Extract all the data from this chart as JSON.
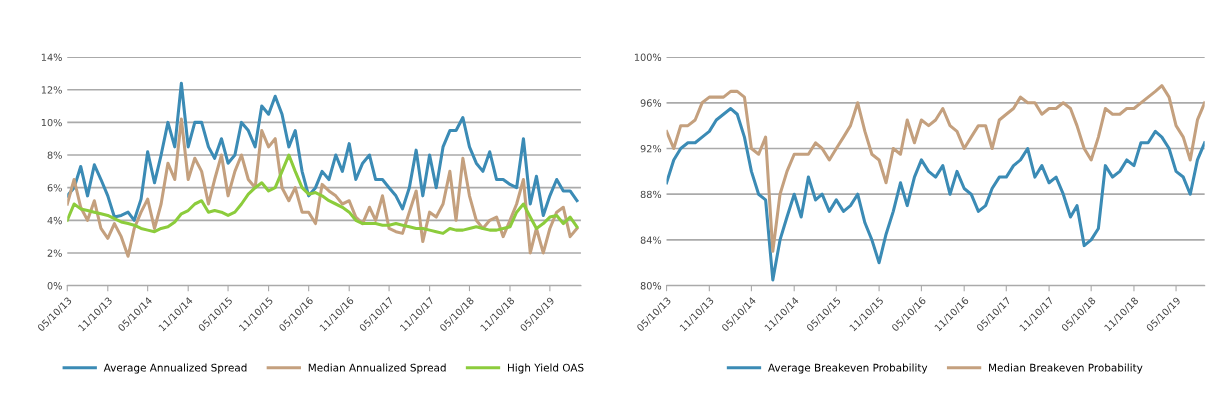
{
  "chart_data": [
    {
      "type": "line",
      "x": [
        "2013-05-10",
        "2013-06-10",
        "2013-07-10",
        "2013-08-10",
        "2013-09-10",
        "2013-10-10",
        "2013-11-10",
        "2013-12-10",
        "2014-01-10",
        "2014-02-10",
        "2014-03-10",
        "2014-04-10",
        "2014-05-10",
        "2014-06-10",
        "2014-07-10",
        "2014-08-10",
        "2014-09-10",
        "2014-10-10",
        "2014-11-10",
        "2014-12-10",
        "2015-01-10",
        "2015-02-10",
        "2015-03-10",
        "2015-04-10",
        "2015-05-10",
        "2015-06-10",
        "2015-07-10",
        "2015-08-10",
        "2015-09-10",
        "2015-10-10",
        "2015-11-10",
        "2015-12-10",
        "2016-01-10",
        "2016-02-10",
        "2016-03-10",
        "2016-04-10",
        "2016-05-10",
        "2016-06-10",
        "2016-07-10",
        "2016-08-10",
        "2016-09-10",
        "2016-10-10",
        "2016-11-10",
        "2016-12-10",
        "2017-01-10",
        "2017-02-10",
        "2017-03-10",
        "2017-04-10",
        "2017-05-10",
        "2017-06-10",
        "2017-07-10",
        "2017-08-10",
        "2017-09-10",
        "2017-10-10",
        "2017-11-10",
        "2017-12-10",
        "2018-01-10",
        "2018-02-10",
        "2018-03-10",
        "2018-04-10",
        "2018-05-10",
        "2018-06-10",
        "2018-07-10",
        "2018-08-10",
        "2018-09-10",
        "2018-10-10",
        "2018-11-10",
        "2018-12-10",
        "2019-01-10",
        "2019-02-10",
        "2019-03-10",
        "2019-04-10",
        "2019-05-10",
        "2019-06-10",
        "2019-07-10",
        "2019-08-10",
        "2019-09-10"
      ],
      "series": [
        {
          "name": "Average Annualized Spread",
          "color": "#3b8bb5",
          "values": [
            5.5,
            6,
            7.3,
            5.5,
            7.4,
            6.5,
            5.5,
            4.2,
            4.3,
            4.5,
            4,
            5.3,
            8.2,
            6.3,
            8,
            10,
            8.5,
            12.4,
            8.5,
            10,
            10,
            8.5,
            7.8,
            9,
            7.5,
            8,
            10,
            9.5,
            8.5,
            11,
            10.5,
            11.6,
            10.5,
            8.5,
            9.5,
            7,
            5.5,
            6,
            7,
            6.5,
            8,
            7,
            8.7,
            6.5,
            7.5,
            8,
            6.5,
            6.5,
            6,
            5.5,
            4.7,
            6,
            8.3,
            5.5,
            8,
            6,
            8.5,
            9.5,
            9.5,
            10.3,
            8.5,
            7.5,
            7,
            8.2,
            6.5,
            6.5,
            6.2,
            6,
            9,
            5,
            6.7,
            4.3,
            5.5,
            6.5,
            5.8,
            5.8,
            5.2
          ]
        },
        {
          "name": "Median Annualized Spread",
          "color": "#c4a07e",
          "values": [
            5,
            6.5,
            4.8,
            4,
            5.2,
            3.5,
            2.9,
            3.8,
            3,
            1.8,
            3.5,
            4.5,
            5.3,
            3.5,
            5,
            7.5,
            6.5,
            10.2,
            6.5,
            7.8,
            7,
            5,
            6.5,
            8,
            5.5,
            7,
            8,
            6.5,
            6,
            9.5,
            8.5,
            9,
            6,
            5.2,
            6,
            4.5,
            4.5,
            3.8,
            6.2,
            5.8,
            5.5,
            5,
            5.2,
            4.2,
            3.8,
            4.8,
            4,
            5.5,
            3.5,
            3.3,
            3.2,
            4.5,
            5.8,
            2.7,
            4.5,
            4.2,
            5,
            7,
            4,
            7.8,
            5.5,
            4,
            3.5,
            4,
            4.2,
            3,
            4,
            5,
            6.5,
            2,
            3.5,
            2,
            3.5,
            4.5,
            4.8,
            3,
            3.5
          ]
        },
        {
          "name": "High Yield OAS",
          "color": "#8ccc3c",
          "values": [
            4,
            5,
            4.7,
            4.6,
            4.5,
            4.4,
            4.3,
            4.1,
            3.9,
            3.8,
            3.7,
            3.5,
            3.4,
            3.3,
            3.5,
            3.6,
            3.9,
            4.4,
            4.6,
            5,
            5.2,
            4.5,
            4.6,
            4.5,
            4.3,
            4.5,
            5,
            5.6,
            6,
            6.3,
            5.8,
            6,
            7,
            8,
            7,
            6,
            5.6,
            5.7,
            5.5,
            5.2,
            5,
            4.8,
            4.5,
            4,
            3.8,
            3.8,
            3.8,
            3.7,
            3.7,
            3.8,
            3.7,
            3.6,
            3.5,
            3.5,
            3.4,
            3.3,
            3.2,
            3.5,
            3.4,
            3.4,
            3.5,
            3.6,
            3.5,
            3.4,
            3.4,
            3.5,
            3.6,
            4.5,
            5,
            4.2,
            3.5,
            3.8,
            4.2,
            4.3,
            3.8,
            4.2,
            3.6
          ]
        }
      ],
      "xlim": [
        "2013-05-10",
        "2019-09-28"
      ],
      "xticks": [
        {
          "value": "2013-05-10",
          "label": "05/10/13"
        },
        {
          "value": "2013-11-10",
          "label": "11/10/13"
        },
        {
          "value": "2014-05-10",
          "label": "05/10/14"
        },
        {
          "value": "2014-11-10",
          "label": "11/10/14"
        },
        {
          "value": "2015-05-10",
          "label": "05/10/15"
        },
        {
          "value": "2015-11-10",
          "label": "11/10/15"
        },
        {
          "value": "2016-05-10",
          "label": "05/10/16"
        },
        {
          "value": "2016-11-10",
          "label": "11/10/16"
        },
        {
          "value": "2017-05-10",
          "label": "05/10/17"
        },
        {
          "value": "2017-11-10",
          "label": "11/10/17"
        },
        {
          "value": "2018-05-10",
          "label": "05/10/18"
        },
        {
          "value": "2018-11-10",
          "label": "11/10/18"
        },
        {
          "value": "2019-05-10",
          "label": "05/10/19"
        }
      ],
      "ylim": [
        0,
        14
      ],
      "yticks": [
        {
          "value": 0,
          "label": "0%"
        },
        {
          "value": 2,
          "label": "2%"
        },
        {
          "value": 4,
          "label": "4%"
        },
        {
          "value": 6,
          "label": "6%"
        },
        {
          "value": 8,
          "label": "8%"
        },
        {
          "value": 10,
          "label": "10%"
        },
        {
          "value": 12,
          "label": "12%"
        },
        {
          "value": 14,
          "label": "14%"
        }
      ],
      "grid": "y",
      "legend": "bottom",
      "line_style": "solid",
      "marker": "none"
    },
    {
      "type": "line",
      "x": [
        "2013-05-10",
        "2013-06-10",
        "2013-07-10",
        "2013-08-10",
        "2013-09-10",
        "2013-10-10",
        "2013-11-10",
        "2013-12-10",
        "2014-01-10",
        "2014-02-10",
        "2014-03-10",
        "2014-04-10",
        "2014-05-10",
        "2014-06-10",
        "2014-07-10",
        "2014-08-10",
        "2014-09-10",
        "2014-10-10",
        "2014-11-10",
        "2014-12-10",
        "2015-01-10",
        "2015-02-10",
        "2015-03-10",
        "2015-04-10",
        "2015-05-10",
        "2015-06-10",
        "2015-07-10",
        "2015-08-10",
        "2015-09-10",
        "2015-10-10",
        "2015-11-10",
        "2015-12-10",
        "2016-01-10",
        "2016-02-10",
        "2016-03-10",
        "2016-04-10",
        "2016-05-10",
        "2016-06-10",
        "2016-07-10",
        "2016-08-10",
        "2016-09-10",
        "2016-10-10",
        "2016-11-10",
        "2016-12-10",
        "2017-01-10",
        "2017-02-10",
        "2017-03-10",
        "2017-04-10",
        "2017-05-10",
        "2017-06-10",
        "2017-07-10",
        "2017-08-10",
        "2017-09-10",
        "2017-10-10",
        "2017-11-10",
        "2017-12-10",
        "2018-01-10",
        "2018-02-10",
        "2018-03-10",
        "2018-04-10",
        "2018-05-10",
        "2018-06-10",
        "2018-07-10",
        "2018-08-10",
        "2018-09-10",
        "2018-10-10",
        "2018-11-10",
        "2018-12-10",
        "2019-01-10",
        "2019-02-10",
        "2019-03-10",
        "2019-04-10",
        "2019-05-10",
        "2019-06-10",
        "2019-07-10",
        "2019-08-10",
        "2019-09-10"
      ],
      "series": [
        {
          "name": "Average Breakeven Probability",
          "color": "#3b8bb5",
          "values": [
            89,
            91,
            92,
            92.5,
            92.5,
            93,
            93.5,
            94.5,
            95,
            95.5,
            95,
            93,
            90,
            88,
            87.5,
            80.5,
            84,
            86,
            88,
            86,
            89.5,
            87.5,
            88,
            86.5,
            87.5,
            86.5,
            87,
            88,
            85.5,
            84,
            82,
            84.5,
            86.5,
            89,
            87,
            89.5,
            91,
            90,
            89.5,
            90.5,
            88,
            90,
            88.5,
            88,
            86.5,
            87,
            88.5,
            89.5,
            89.5,
            90.5,
            91,
            92,
            89.5,
            90.5,
            89,
            89.5,
            88,
            86,
            87,
            83.5,
            84,
            85,
            90.5,
            89.5,
            90,
            91,
            90.5,
            92.5,
            92.5,
            93.5,
            93,
            92,
            90,
            89.5,
            88,
            91,
            92.5
          ]
        },
        {
          "name": "Median Breakeven Probability",
          "color": "#c4a07e",
          "values": [
            93.5,
            92,
            94,
            94,
            94.5,
            96,
            96.5,
            96.5,
            96.5,
            97,
            97,
            96.5,
            92,
            91.5,
            93,
            83,
            88,
            90,
            91.5,
            91.5,
            91.5,
            92.5,
            92,
            91,
            92,
            93,
            94,
            96,
            93.5,
            91.5,
            91,
            89,
            92,
            91.5,
            94.5,
            92.5,
            94.5,
            94,
            94.5,
            95.5,
            94,
            93.5,
            92,
            93,
            94,
            94,
            92,
            94.5,
            95,
            95.5,
            96.5,
            96,
            96,
            95,
            95.5,
            95.5,
            96,
            95.5,
            94,
            92,
            91,
            93,
            95.5,
            95,
            95,
            95.5,
            95.5,
            96,
            96.5,
            97,
            97.5,
            96.5,
            94,
            93,
            91,
            94.5,
            96
          ]
        }
      ],
      "xlim": [
        "2013-05-10",
        "2019-09-10"
      ],
      "xticks": [
        {
          "value": "2013-05-10",
          "label": "05/10/13"
        },
        {
          "value": "2013-11-10",
          "label": "11/10/13"
        },
        {
          "value": "2014-05-10",
          "label": "05/10/14"
        },
        {
          "value": "2014-11-10",
          "label": "11/10/14"
        },
        {
          "value": "2015-05-10",
          "label": "05/10/15"
        },
        {
          "value": "2015-11-10",
          "label": "11/10/15"
        },
        {
          "value": "2016-05-10",
          "label": "05/10/16"
        },
        {
          "value": "2016-11-10",
          "label": "11/10/16"
        },
        {
          "value": "2017-05-10",
          "label": "05/10/17"
        },
        {
          "value": "2017-11-10",
          "label": "11/10/17"
        },
        {
          "value": "2018-05-10",
          "label": "05/10/18"
        },
        {
          "value": "2018-11-10",
          "label": "11/10/18"
        },
        {
          "value": "2019-05-10",
          "label": "05/10/19"
        }
      ],
      "ylim": [
        80,
        100
      ],
      "yticks": [
        {
          "value": 80,
          "label": "80%"
        },
        {
          "value": 84,
          "label": "84%"
        },
        {
          "value": 88,
          "label": "88%"
        },
        {
          "value": 92,
          "label": "92%"
        },
        {
          "value": 96,
          "label": "96%"
        },
        {
          "value": 100,
          "label": "100%"
        }
      ],
      "grid": "y",
      "legend": "bottom",
      "line_style": "solid",
      "marker": "none"
    }
  ]
}
